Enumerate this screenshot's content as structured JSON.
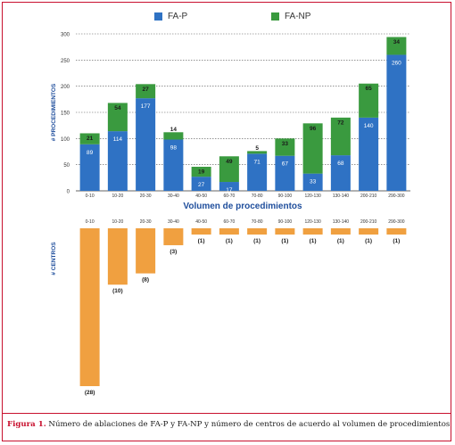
{
  "chart_data": {
    "type": "bar",
    "categories": [
      "0-10",
      "10-20",
      "20-30",
      "30-40",
      "40-50",
      "60-70",
      "70-80",
      "90-100",
      "120-130",
      "130-140",
      "200-210",
      "290-300"
    ],
    "series": [
      {
        "name": "FA-P",
        "color": "#2f72c4",
        "values": [
          89,
          114,
          177,
          98,
          27,
          17,
          71,
          67,
          33,
          68,
          140,
          260
        ]
      },
      {
        "name": "FA-NP",
        "color": "#3a9a3f",
        "values": [
          21,
          54,
          27,
          14,
          19,
          49,
          5,
          33,
          96,
          72,
          65,
          34
        ]
      }
    ],
    "stacked": true,
    "xlabel": "Volumen de procedimientos",
    "ylabel": "# PROCEDIMIENTOS",
    "ylim": [
      0,
      300
    ],
    "yticks": [
      0,
      50,
      100,
      150,
      200,
      250,
      300
    ],
    "grid": true,
    "legend": "top"
  },
  "centers_chart": {
    "ylabel": "# CENTROS",
    "color": "#f0a040",
    "values": [
      28,
      10,
      8,
      3,
      1,
      1,
      1,
      1,
      1,
      1,
      1,
      1
    ],
    "labels": [
      "(28)",
      "(10)",
      "(8)",
      "(3)",
      "(1)",
      "(1)",
      "(1)",
      "(1)",
      "(1)",
      "(1)",
      "(1)",
      "(1)"
    ]
  },
  "caption": {
    "label": "Figura 1.",
    "text": " Número de ablaciones de FA-P y FA-NP y número de centros de acuerdo al volumen de procedimientos al año."
  }
}
